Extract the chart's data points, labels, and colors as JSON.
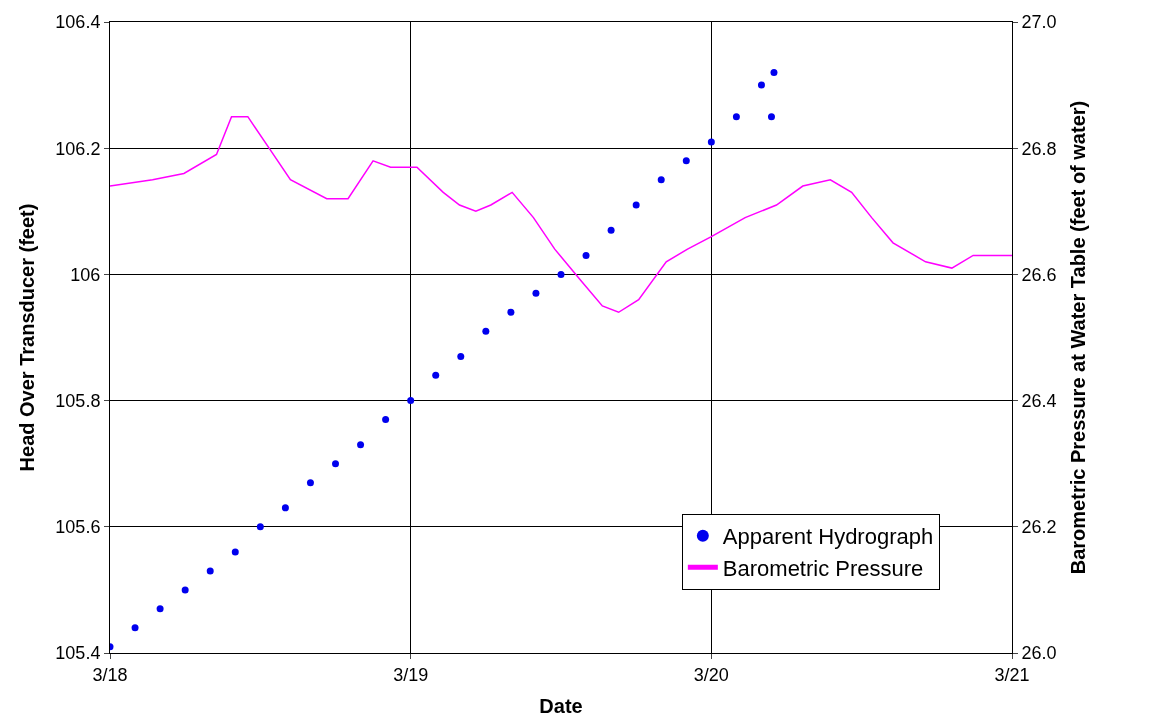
{
  "chart_data": {
    "type": "scatter",
    "xlabel": "Date",
    "ylabel": "Head Over Transducer (feet)",
    "y2label": "Barometric Pressure at Water Table (feet of water)",
    "xlim": [
      "--03-18",
      "--03-21"
    ],
    "xticks": [
      {
        "value": "--03-18",
        "label": "3/18"
      },
      {
        "value": "--03-19",
        "label": "3/19"
      },
      {
        "value": "--03-20",
        "label": "3/20"
      },
      {
        "value": "--03-21",
        "label": "3/21"
      }
    ],
    "ylim": [
      105.4,
      106.4
    ],
    "yticks": [
      105.4,
      105.6,
      105.8,
      106,
      106.2,
      106.4
    ],
    "y2lim": [
      26.0,
      27.0
    ],
    "y2ticks": [
      {
        "value": 26,
        "label": "26.0"
      },
      {
        "value": 26.2,
        "label": "26.2"
      },
      {
        "value": 26.4,
        "label": "26.4"
      },
      {
        "value": 26.6,
        "label": "26.6"
      },
      {
        "value": 26.8,
        "label": "26.8"
      },
      {
        "value": 27,
        "label": "27.0"
      }
    ],
    "grid": true,
    "legend": "bottom right",
    "series": [
      {
        "name": "Apparent Hydrograph",
        "marker": "circle",
        "color": "#0000ee",
        "x": [
          "--03-18T00:00",
          "--03-18T02:00",
          "--03-18T04:00",
          "--03-18T06:00",
          "--03-18T08:00",
          "--03-18T10:00",
          "--03-18T12:00",
          "--03-18T14:00",
          "--03-18T16:00",
          "--03-18T18:00",
          "--03-18T20:00",
          "--03-18T22:00",
          "--03-19T00:00",
          "--03-19T02:00",
          "--03-19T04:00",
          "--03-19T06:00",
          "--03-19T08:00",
          "--03-19T10:00",
          "--03-19T12:00",
          "--03-19T14:00",
          "--03-19T16:00",
          "--03-19T18:00",
          "--03-19T20:00",
          "--03-19T22:00",
          "--03-20T00:00",
          "--03-20T02:00",
          "--03-20T04:00",
          "--03-20T05:00",
          "--03-20T04:48"
        ],
        "values": [
          105.41,
          105.44,
          105.47,
          105.5,
          105.53,
          105.56,
          105.6,
          105.63,
          105.67,
          105.7,
          105.73,
          105.77,
          105.8,
          105.84,
          105.87,
          105.91,
          105.94,
          105.97,
          106.0,
          106.03,
          106.07,
          106.11,
          106.15,
          106.18,
          106.21,
          106.25,
          106.3,
          106.32,
          106.25
        ]
      },
      {
        "name": "Barometric Pressure",
        "type": "line",
        "axis": "y2",
        "color": "#ff00ff",
        "x": [
          "--03-18T00:00",
          "--03-18T03:24",
          "--03-18T05:54",
          "--03-18T08:30",
          "--03-18T09:42",
          "--03-18T11:00",
          "--03-18T12:42",
          "--03-18T14:24",
          "--03-18T17:18",
          "--03-18T19:00",
          "--03-18T21:00",
          "--03-18T22:24",
          "--03-19T00:30",
          "--03-19T02:36",
          "--03-19T03:54",
          "--03-19T05:12",
          "--03-19T06:24",
          "--03-19T08:06",
          "--03-19T09:48",
          "--03-19T11:30",
          "--03-19T13:36",
          "--03-19T15:18",
          "--03-19T16:36",
          "--03-19T18:12",
          "--03-19T20:24",
          "--03-19T22:06",
          "--03-20T00:00",
          "--03-20T02:42",
          "--03-20T05:12",
          "--03-20T07:18",
          "--03-20T09:30",
          "--03-20T11:12",
          "--03-20T12:48",
          "--03-20T14:30",
          "--03-20T17:06",
          "--03-20T19:12",
          "--03-20T20:54",
          "--03-20T23:00",
          "--03-21T00:00"
        ],
        "values": [
          26.74,
          26.75,
          26.76,
          26.79,
          26.85,
          26.85,
          26.8,
          26.75,
          26.72,
          26.72,
          26.78,
          26.77,
          26.77,
          26.73,
          26.71,
          26.7,
          26.71,
          26.73,
          26.69,
          26.64,
          26.59,
          26.55,
          26.54,
          26.56,
          26.62,
          26.64,
          26.66,
          26.69,
          26.71,
          26.74,
          26.75,
          26.73,
          26.69,
          26.65,
          26.62,
          26.61,
          26.63,
          26.63,
          26.63
        ]
      }
    ]
  }
}
